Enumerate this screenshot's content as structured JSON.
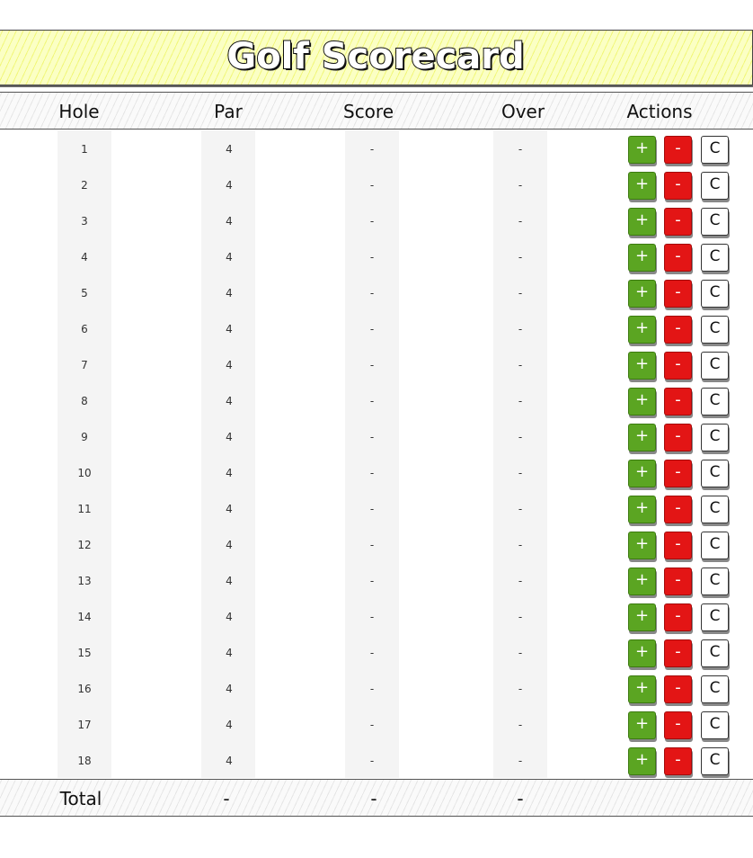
{
  "title": "Golf Scorecard",
  "header": {
    "hole": "Hole",
    "par": "Par",
    "score": "Score",
    "over": "Over",
    "actions": "Actions"
  },
  "buttons": {
    "plus": "+",
    "minus": "-",
    "clear": "C"
  },
  "rows": [
    {
      "hole": "1",
      "par": "4",
      "score": "-",
      "over": "-"
    },
    {
      "hole": "2",
      "par": "4",
      "score": "-",
      "over": "-"
    },
    {
      "hole": "3",
      "par": "4",
      "score": "-",
      "over": "-"
    },
    {
      "hole": "4",
      "par": "4",
      "score": "-",
      "over": "-"
    },
    {
      "hole": "5",
      "par": "4",
      "score": "-",
      "over": "-"
    },
    {
      "hole": "6",
      "par": "4",
      "score": "-",
      "over": "-"
    },
    {
      "hole": "7",
      "par": "4",
      "score": "-",
      "over": "-"
    },
    {
      "hole": "8",
      "par": "4",
      "score": "-",
      "over": "-"
    },
    {
      "hole": "9",
      "par": "4",
      "score": "-",
      "over": "-"
    },
    {
      "hole": "10",
      "par": "4",
      "score": "-",
      "over": "-"
    },
    {
      "hole": "11",
      "par": "4",
      "score": "-",
      "over": "-"
    },
    {
      "hole": "12",
      "par": "4",
      "score": "-",
      "over": "-"
    },
    {
      "hole": "13",
      "par": "4",
      "score": "-",
      "over": "-"
    },
    {
      "hole": "14",
      "par": "4",
      "score": "-",
      "over": "-"
    },
    {
      "hole": "15",
      "par": "4",
      "score": "-",
      "over": "-"
    },
    {
      "hole": "16",
      "par": "4",
      "score": "-",
      "over": "-"
    },
    {
      "hole": "17",
      "par": "4",
      "score": "-",
      "over": "-"
    },
    {
      "hole": "18",
      "par": "4",
      "score": "-",
      "over": "-"
    }
  ],
  "total": {
    "label": "Total",
    "par": "-",
    "score": "-",
    "over": "-"
  },
  "colors": {
    "title_bg": "#fbffc4",
    "plus": "#5ba522",
    "minus": "#e31515"
  }
}
